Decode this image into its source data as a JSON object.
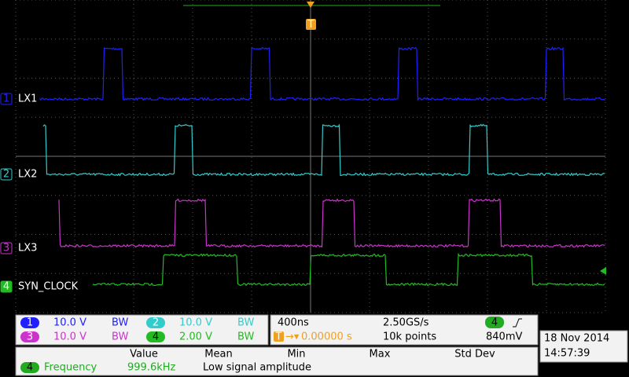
{
  "channels": [
    {
      "number": "1",
      "label": "LX1",
      "scale": "10.0 V",
      "bandwidth_limit": "BW"
    },
    {
      "number": "2",
      "label": "LX2",
      "scale": "10.0 V",
      "bandwidth_limit": "BW"
    },
    {
      "number": "3",
      "label": "LX3",
      "scale": "10.0 V",
      "bandwidth_limit": "BW"
    },
    {
      "number": "4",
      "label": "SYN_CLOCK",
      "scale": "2.00 V",
      "bandwidth_limit": "BW"
    }
  ],
  "timebase": {
    "horizontal_scale": "400ns",
    "sample_rate": "2.50GS/s",
    "trigger_position": "0.00000 s",
    "record_length": "10k points",
    "trigger_source": "4",
    "trigger_level": "840mV",
    "trigger_marker": "T"
  },
  "measurements": {
    "headers": [
      "Value",
      "Mean",
      "Min",
      "Max",
      "Std Dev"
    ],
    "rows": [
      {
        "source": "4",
        "name": "Frequency",
        "value": "999.6kHz",
        "status": "Low signal amplitude"
      }
    ]
  },
  "datetime": {
    "date": "18 Nov 2014",
    "time": "14:57:39"
  }
}
